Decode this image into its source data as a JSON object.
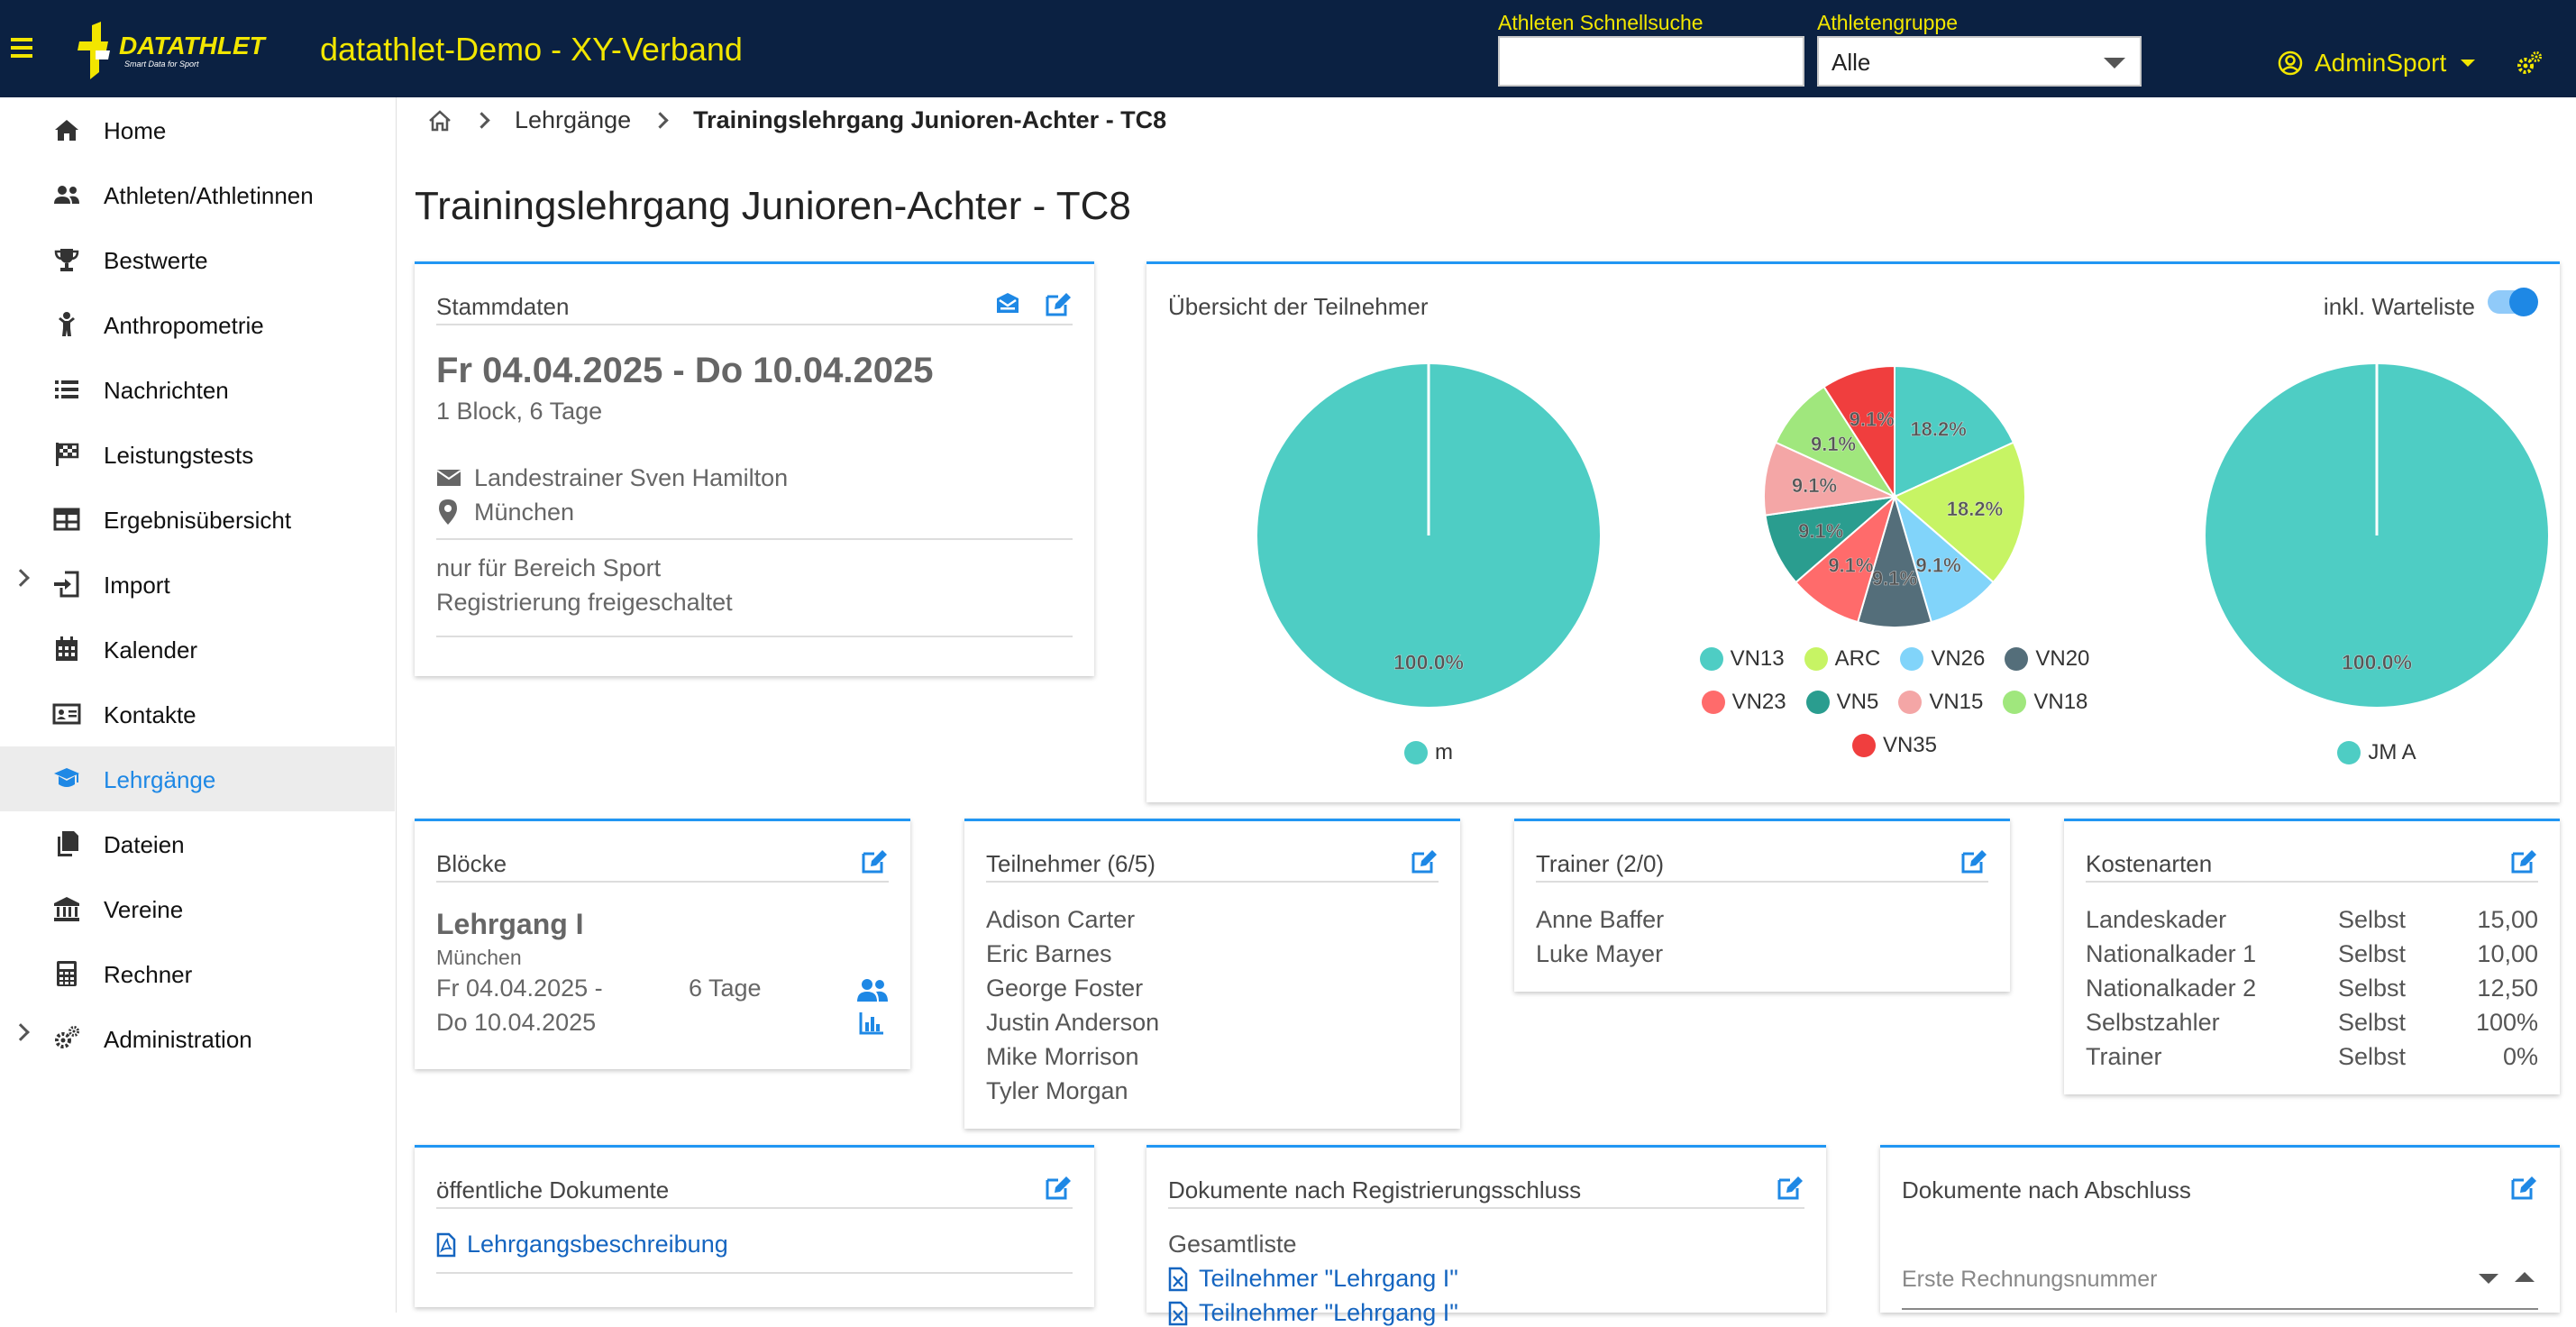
{
  "header": {
    "app_title": "datathlet-Demo - XY-Verband",
    "logo_text": "DATATHLET",
    "logo_tagline": "Smart Data for Sport",
    "quick_search_label": "Athleten Schnellsuche",
    "quick_search_value": "",
    "group_label": "Athletengruppe",
    "group_value": "Alle",
    "user_name": "AdminSport",
    "accent_color": "#f2e600",
    "bg_color": "#0b2142"
  },
  "sidebar": {
    "items": [
      {
        "label": "Home",
        "icon": "home-icon"
      },
      {
        "label": "Athleten/Athletinnen",
        "icon": "users-icon"
      },
      {
        "label": "Bestwerte",
        "icon": "trophy-icon"
      },
      {
        "label": "Anthropometrie",
        "icon": "child-icon"
      },
      {
        "label": "Nachrichten",
        "icon": "list-icon"
      },
      {
        "label": "Leistungstests",
        "icon": "flag-checkered-icon"
      },
      {
        "label": "Ergebnisübersicht",
        "icon": "table-icon"
      },
      {
        "label": "Import",
        "icon": "import-icon"
      },
      {
        "label": "Kalender",
        "icon": "calendar-icon"
      },
      {
        "label": "Kontakte",
        "icon": "id-card-icon"
      },
      {
        "label": "Lehrgänge",
        "icon": "graduation-icon",
        "active": true
      },
      {
        "label": "Dateien",
        "icon": "files-icon"
      },
      {
        "label": "Vereine",
        "icon": "bank-icon"
      },
      {
        "label": "Rechner",
        "icon": "calculator-icon"
      },
      {
        "label": "Administration",
        "icon": "cogs-icon"
      }
    ]
  },
  "breadcrumb": {
    "parent": "Lehrgänge",
    "current": "Trainingslehrgang Junioren-Achter - TC8"
  },
  "page_title": "Trainingslehrgang Junioren-Achter - TC8",
  "stammdaten": {
    "title": "Stammdaten",
    "date_range": "Fr 04.04.2025 - Do 10.04.2025",
    "duration": "1 Block, 6 Tage",
    "contact": "Landestrainer Sven Hamilton",
    "location": "München",
    "scope": "nur für Bereich Sport",
    "registration": "Registrierung freigeschaltet"
  },
  "overview": {
    "title": "Übersicht der Teilnehmer",
    "toggle_label": "inkl. Warteliste",
    "toggle_on": true
  },
  "chart_data": [
    {
      "type": "pie",
      "categories": [
        "m"
      ],
      "values": [
        100.0
      ],
      "labels": [
        "100.0%"
      ],
      "colors": [
        "#4ecdc4"
      ]
    },
    {
      "type": "pie",
      "categories": [
        "VN13",
        "ARC",
        "VN26",
        "VN20",
        "VN23",
        "VN5",
        "VN15",
        "VN18",
        "VN35"
      ],
      "values": [
        18.2,
        18.2,
        9.1,
        9.1,
        9.1,
        9.1,
        9.1,
        9.1,
        9.1
      ],
      "labels": [
        "18.2%",
        "18.2%",
        "9.1%",
        "9.1%",
        "9.1%",
        "9.1%",
        "9.1%",
        "9.1%",
        "9.1%"
      ],
      "colors": [
        "#4ecdc4",
        "#c7f464",
        "#81d4fa",
        "#546e7a",
        "#ff6b6b",
        "#2a9d8f",
        "#f4a6a6",
        "#a0e77d",
        "#f03e3e"
      ]
    },
    {
      "type": "pie",
      "categories": [
        "JM A"
      ],
      "values": [
        100.0
      ],
      "labels": [
        "100.0%"
      ],
      "colors": [
        "#4ecdc4"
      ]
    }
  ],
  "bloecke": {
    "title": "Blöcke",
    "name": "Lehrgang I",
    "location": "München",
    "date_line1": "Fr 04.04.2025 -",
    "date_line2": "Do 10.04.2025",
    "days": "6 Tage"
  },
  "teilnehmer": {
    "title": "Teilnehmer (6/5)",
    "names": [
      "Adison Carter",
      "Eric Barnes",
      "George Foster",
      "Justin Anderson",
      "Mike Morrison",
      "Tyler Morgan"
    ]
  },
  "trainer": {
    "title": "Trainer (2/0)",
    "names": [
      "Anne Baffer",
      "Luke Mayer"
    ]
  },
  "kostenarten": {
    "title": "Kostenarten",
    "rows": [
      {
        "name": "Landeskader",
        "type": "Selbst",
        "value": "15,00"
      },
      {
        "name": "Nationalkader 1",
        "type": "Selbst",
        "value": "10,00"
      },
      {
        "name": "Nationalkader 2",
        "type": "Selbst",
        "value": "12,50"
      },
      {
        "name": "Selbstzahler",
        "type": "Selbst",
        "value": "100%"
      },
      {
        "name": "Trainer",
        "type": "Selbst",
        "value": "0%"
      }
    ]
  },
  "public_docs": {
    "title": "öffentliche Dokumente",
    "link": "Lehrgangsbeschreibung"
  },
  "reg_docs": {
    "title": "Dokumente nach Registrierungsschluss",
    "section": "Gesamtliste",
    "links": [
      "Teilnehmer \"Lehrgang I\"",
      "Teilnehmer \"Lehrgang I\""
    ]
  },
  "final_docs": {
    "title": "Dokumente nach Abschluss",
    "field_placeholder": "Erste Rechnungsnummer"
  }
}
